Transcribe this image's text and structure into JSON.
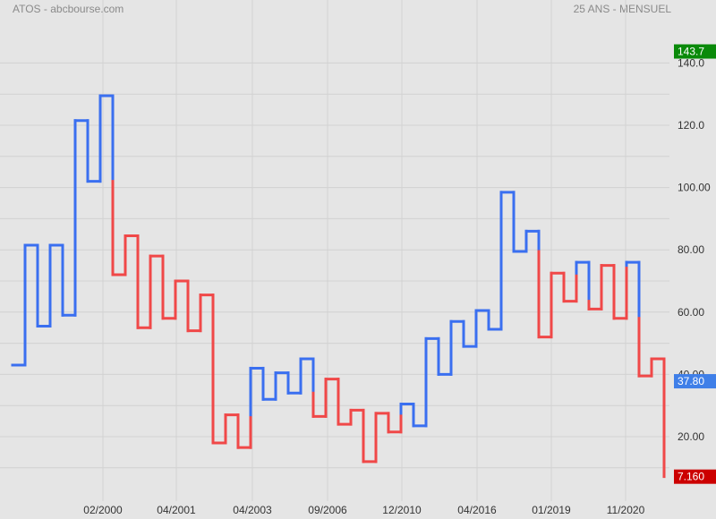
{
  "header": {
    "title": "ATOS - abcbourse.com",
    "subtitle": "25 ANS - MENSUEL"
  },
  "chart_data": {
    "type": "line",
    "style": "kagi",
    "title": "ATOS - abcbourse.com",
    "subtitle": "25 ANS - MENSUEL",
    "ylim": [
      4,
      146
    ],
    "y_ticks": [
      20,
      40,
      60,
      80,
      100,
      120,
      140
    ],
    "y_tick_labels": [
      "20.00",
      "40.00",
      "60.00",
      "80.00",
      "100.00",
      "120.0",
      "140.0"
    ],
    "x_tick_labels": [
      "02/2000",
      "04/2001",
      "04/2003",
      "09/2006",
      "12/2010",
      "04/2016",
      "01/2019",
      "11/2020"
    ],
    "grid": true,
    "kagi_values": [
      43,
      81.5,
      55.5,
      81.5,
      59,
      121.5,
      102,
      129.5,
      72,
      84.5,
      55,
      78,
      58,
      70,
      54,
      65.5,
      18,
      27,
      16.5,
      42,
      32,
      40.5,
      34,
      45,
      26.5,
      38.5,
      24,
      28.5,
      12,
      27.5,
      21.5,
      30.5,
      23.5,
      51.5,
      40,
      57,
      49,
      60.5,
      54.5,
      98.5,
      79.5,
      86,
      52,
      72.5,
      63.5,
      76,
      61,
      75,
      58,
      76,
      39.5,
      45,
      7.16
    ],
    "colors": {
      "up": "#3a6ff0",
      "down": "#f04848"
    },
    "price_tags": [
      {
        "value": "143.7",
        "y": 143.7,
        "color": "#0a8a0a"
      },
      {
        "value": "37.80",
        "y": 37.8,
        "color": "#3f7fe8"
      },
      {
        "value": "7.160",
        "y": 7.16,
        "color": "#cc0000"
      }
    ]
  }
}
